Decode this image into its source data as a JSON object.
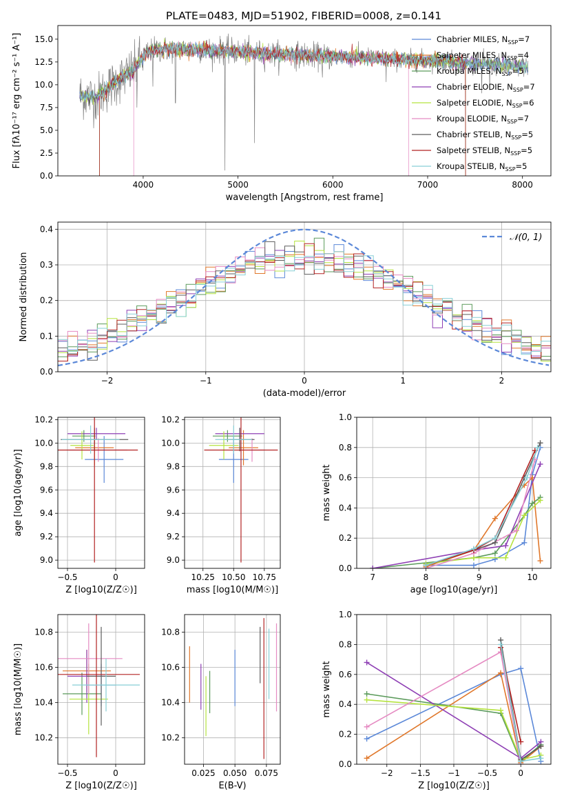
{
  "figure_title": "PLATE=0483, MJD=51902, FIBERID=0008, z=0.141",
  "model_colors": [
    "#5b88d8",
    "#e0772a",
    "#5a9a5a",
    "#8e3fb4",
    "#b5e33e",
    "#e58ac2",
    "#5c5c5c",
    "#b22222",
    "#87cfd6"
  ],
  "chart_data": [
    {
      "id": "spectrum",
      "type": "line",
      "title": "PLATE=0483, MJD=51902, FIBERID=0008, z=0.141",
      "xlabel": "wavelength [Angstrom, rest frame]",
      "ylabel": "Flux [fλ10⁻¹⁷ erg cm⁻² s⁻¹ A⁻¹]",
      "xlim": [
        3100,
        8300
      ],
      "ylim": [
        0,
        16.5
      ],
      "xticks": [
        4000,
        5000,
        6000,
        7000,
        8000
      ],
      "yticks": [
        0.0,
        2.5,
        5.0,
        7.5,
        10.0,
        12.5,
        15.0
      ],
      "grid": false,
      "legend_position": "right",
      "legend": [
        "Chabrier MILES, N_SSP=7",
        "Salpeter MILES, N_SSP=4",
        "Kroupa MILES, N_SSP=5",
        "Chabrier ELODIE, N_SSP=7",
        "Salpeter ELODIE, N_SSP=6",
        "Kroupa ELODIE, N_SSP=7",
        "Chabrier STELIB, N_SSP=5",
        "Salpeter STELIB, N_SSP=5",
        "Kroupa STELIB, N_SSP=5"
      ],
      "continuum": {
        "x": [
          3330,
          3500,
          3700,
          3900,
          4000,
          4100,
          4300,
          4500,
          4800,
          5000,
          5300,
          5600,
          5900,
          6200,
          6500,
          6800,
          7100,
          7400,
          7700,
          8060
        ],
        "y": [
          8.9,
          8.6,
          10.2,
          11.6,
          13.2,
          13.8,
          13.9,
          13.9,
          13.8,
          13.6,
          13.4,
          13.3,
          13.1,
          13.0,
          12.9,
          12.7,
          12.7,
          12.4,
          12.2,
          12.0
        ]
      },
      "absorption_lines": [
        {
          "x": 3934,
          "y": 7.5
        },
        {
          "x": 4102,
          "y": 9.8
        },
        {
          "x": 4340,
          "y": 8.0
        },
        {
          "x": 4861,
          "y": 0.6
        },
        {
          "x": 5175,
          "y": 3.6
        },
        {
          "x": 5890,
          "y": 10.8
        },
        {
          "x": 6563,
          "y": 10.3
        }
      ]
    },
    {
      "id": "residuals",
      "type": "histogram",
      "xlabel": "(data-model)/error",
      "ylabel": "Normed distribution",
      "xlim": [
        -2.5,
        2.5
      ],
      "ylim": [
        0,
        0.42
      ],
      "xticks": [
        -2,
        -1,
        0,
        1,
        2
      ],
      "yticks": [
        0.0,
        0.1,
        0.2,
        0.3,
        0.4
      ],
      "grid": true,
      "legend_position": "top-right",
      "legend": [
        "N(0,1)"
      ],
      "bin_width": 0.1
    },
    {
      "id": "age_vs_Z",
      "type": "errorbar",
      "xlabel": "Z [log10(Z/Z☉)]",
      "ylabel": "age  [log10(age/yr)]",
      "xlim": [
        -0.6,
        0.3
      ],
      "ylim": [
        8.93,
        10.22
      ],
      "xticks": [
        -0.5,
        0.0
      ],
      "yticks": [
        9.0,
        9.2,
        9.4,
        9.6,
        9.8,
        10.0,
        10.2
      ],
      "grid": true,
      "points": [
        {
          "x": -0.12,
          "y": 9.86,
          "xerr": 0.2,
          "yerr": 0.2
        },
        {
          "x": -0.22,
          "y": 9.96,
          "xerr": 0.2,
          "yerr": 0.15
        },
        {
          "x": -0.33,
          "y": 10.06,
          "xerr": 0.12,
          "yerr": 0.05
        },
        {
          "x": -0.2,
          "y": 10.08,
          "xerr": 0.3,
          "yerr": 0.05
        },
        {
          "x": -0.35,
          "y": 9.98,
          "xerr": 0.12,
          "yerr": 0.12
        },
        {
          "x": -0.18,
          "y": 9.94,
          "xerr": 0.3,
          "yerr": 0.1
        },
        {
          "x": -0.22,
          "y": 10.03,
          "xerr": 0.35,
          "yerr": 0.1
        },
        {
          "x": -0.22,
          "y": 9.94,
          "xerr": 0.45,
          "yerr": 0.96
        },
        {
          "x": -0.26,
          "y": 10.03,
          "xerr": 0.3,
          "yerr": 0.12
        }
      ]
    },
    {
      "id": "age_vs_mass",
      "type": "errorbar",
      "xlabel": "mass [log10(M/M☉)]",
      "xlim": [
        10.1,
        10.88
      ],
      "ylim": [
        8.93,
        10.22
      ],
      "xticks": [
        10.25,
        10.5,
        10.75
      ],
      "xtick_labels": [
        "10.25",
        "10.50",
        "10.75"
      ],
      "yticks": [
        9.0,
        9.2,
        9.4,
        9.6,
        9.8,
        10.0,
        10.2
      ],
      "grid": true,
      "points": [
        {
          "x": 10.5,
          "y": 9.86,
          "xerr": 0.12,
          "yerr": 0.2
        },
        {
          "x": 10.58,
          "y": 9.96,
          "xerr": 0.12,
          "yerr": 0.15
        },
        {
          "x": 10.45,
          "y": 10.06,
          "xerr": 0.12,
          "yerr": 0.05
        },
        {
          "x": 10.55,
          "y": 10.08,
          "xerr": 0.2,
          "yerr": 0.05
        },
        {
          "x": 10.42,
          "y": 9.98,
          "xerr": 0.12,
          "yerr": 0.12
        },
        {
          "x": 10.65,
          "y": 9.94,
          "xerr": 0.1,
          "yerr": 0.1
        },
        {
          "x": 10.55,
          "y": 10.03,
          "xerr": 0.12,
          "yerr": 0.1
        },
        {
          "x": 10.56,
          "y": 9.94,
          "xerr": 0.3,
          "yerr": 0.96
        },
        {
          "x": 10.5,
          "y": 10.03,
          "xerr": 0.15,
          "yerr": 0.12
        }
      ]
    },
    {
      "id": "weight_vs_age",
      "type": "line",
      "xlabel": "age  [log10(age/yr)]",
      "ylabel": "mass weight",
      "xlim": [
        6.7,
        10.35
      ],
      "ylim": [
        0,
        1
      ],
      "xticks": [
        7,
        8,
        9,
        10
      ],
      "yticks": [
        0.0,
        0.2,
        0.4,
        0.6,
        0.8,
        1.0
      ],
      "grid": true,
      "series": [
        {
          "x": [
            8.0,
            8.9,
            9.3,
            9.85,
            10.0,
            10.15
          ],
          "y": [
            0.02,
            0.02,
            0.06,
            0.17,
            0.62,
            0.8
          ]
        },
        {
          "x": [
            8.0,
            8.9,
            9.3,
            9.85,
            10.0,
            10.15
          ],
          "y": [
            0.01,
            0.12,
            0.33,
            0.55,
            0.6,
            0.05
          ]
        },
        {
          "x": [
            7.0,
            8.9,
            9.3,
            9.85,
            10.0,
            10.15
          ],
          "y": [
            0.0,
            0.07,
            0.1,
            0.35,
            0.43,
            0.47
          ]
        },
        {
          "x": [
            7.0,
            8.9,
            9.5,
            10.15
          ],
          "y": [
            0.0,
            0.12,
            0.15,
            0.69
          ]
        },
        {
          "x": [
            8.0,
            8.9,
            9.5,
            9.85,
            10.15
          ],
          "y": [
            0.03,
            0.07,
            0.07,
            0.35,
            0.45
          ]
        },
        {
          "x": [
            8.0,
            8.9,
            9.7,
            10.05
          ],
          "y": [
            0.0,
            0.1,
            0.25,
            0.72
          ]
        },
        {
          "x": [
            8.0,
            8.9,
            9.3,
            9.85,
            10.15
          ],
          "y": [
            0.02,
            0.12,
            0.17,
            0.6,
            0.83
          ]
        },
        {
          "x": [
            8.0,
            8.9,
            9.3,
            10.05
          ],
          "y": [
            0.02,
            0.12,
            0.2,
            0.78
          ]
        },
        {
          "x": [
            8.0,
            8.9,
            9.3,
            9.9,
            10.1
          ],
          "y": [
            0.02,
            0.13,
            0.2,
            0.6,
            0.8
          ]
        }
      ]
    },
    {
      "id": "mass_vs_Z",
      "type": "errorbar",
      "xlabel": "Z [log10(Z/Z☉)]",
      "ylabel": "mass [log10(M/M☉)]",
      "xlim": [
        -0.6,
        0.3
      ],
      "ylim": [
        10.05,
        10.9
      ],
      "xticks": [
        -0.5,
        0.0
      ],
      "yticks": [
        10.2,
        10.4,
        10.6,
        10.8
      ],
      "grid": true,
      "points": [
        {
          "x": -0.15,
          "y": 10.5,
          "xerr": 0.15,
          "yerr": 0.12
        },
        {
          "x": -0.3,
          "y": 10.58,
          "xerr": 0.25,
          "yerr": 0.12
        },
        {
          "x": -0.35,
          "y": 10.45,
          "xerr": 0.2,
          "yerr": 0.12
        },
        {
          "x": -0.3,
          "y": 10.55,
          "xerr": 0.2,
          "yerr": 0.15
        },
        {
          "x": -0.28,
          "y": 10.42,
          "xerr": 0.2,
          "yerr": 0.2
        },
        {
          "x": -0.28,
          "y": 10.65,
          "xerr": 0.35,
          "yerr": 0.2
        },
        {
          "x": -0.15,
          "y": 10.55,
          "xerr": 0.15,
          "yerr": 0.28
        },
        {
          "x": -0.2,
          "y": 10.56,
          "xerr": 0.45,
          "yerr": 0.47
        },
        {
          "x": -0.1,
          "y": 10.5,
          "xerr": 0.35,
          "yerr": 0.15
        }
      ]
    },
    {
      "id": "mass_vs_EBV",
      "type": "errorbar",
      "xlabel": "E(B-V)",
      "xlim": [
        0.01,
        0.086
      ],
      "ylim": [
        10.05,
        10.9
      ],
      "xticks": [
        0.025,
        0.05,
        0.075
      ],
      "xtick_labels": [
        "0.025",
        "0.050",
        "0.075"
      ],
      "yticks": [
        10.2,
        10.4,
        10.6,
        10.8
      ],
      "grid": true,
      "points": [
        {
          "x": 0.05,
          "y": 10.54,
          "yerr": 0.16
        },
        {
          "x": 0.014,
          "y": 10.56,
          "yerr": 0.16
        },
        {
          "x": 0.03,
          "y": 10.46,
          "yerr": 0.12
        },
        {
          "x": 0.023,
          "y": 10.49,
          "yerr": 0.13
        },
        {
          "x": 0.027,
          "y": 10.38,
          "yerr": 0.17
        },
        {
          "x": 0.083,
          "y": 10.6,
          "yerr": 0.25
        },
        {
          "x": 0.07,
          "y": 10.67,
          "yerr": 0.16
        },
        {
          "x": 0.073,
          "y": 10.48,
          "yerr": 0.4
        },
        {
          "x": 0.077,
          "y": 10.62,
          "yerr": 0.2
        }
      ]
    },
    {
      "id": "weight_vs_Z",
      "type": "line",
      "xlabel": "Z [log10(Z/Z☉)]",
      "ylabel": "mass weight",
      "xlim": [
        -2.45,
        0.45
      ],
      "ylim": [
        0,
        1
      ],
      "xticks": [
        -2.0,
        -1.5,
        -1.0,
        -0.5,
        0.0
      ],
      "yticks": [
        0.0,
        0.2,
        0.4,
        0.6,
        0.8,
        1.0
      ],
      "grid": true,
      "series": [
        {
          "x": [
            -2.3,
            -0.3,
            0.0,
            0.3
          ],
          "y": [
            0.17,
            0.6,
            0.64,
            0.02
          ]
        },
        {
          "x": [
            -2.3,
            -0.3,
            0.0,
            0.3
          ],
          "y": [
            0.04,
            0.61,
            0.01,
            0.12
          ]
        },
        {
          "x": [
            -2.3,
            -0.3,
            0.0,
            0.3
          ],
          "y": [
            0.47,
            0.34,
            0.02,
            0.13
          ]
        },
        {
          "x": [
            -2.3,
            0.0,
            0.3
          ],
          "y": [
            0.68,
            0.04,
            0.15
          ]
        },
        {
          "x": [
            -2.3,
            -0.3,
            0.0,
            0.3
          ],
          "y": [
            0.43,
            0.36,
            0.03,
            0.06
          ]
        },
        {
          "x": [
            -2.3,
            -0.3,
            0.0
          ],
          "y": [
            0.25,
            0.75,
            0.0
          ]
        },
        {
          "x": [
            -0.3,
            0.0,
            0.3
          ],
          "y": [
            0.83,
            0.03,
            0.12
          ]
        },
        {
          "x": [
            -0.3,
            0.0
          ],
          "y": [
            0.78,
            0.15
          ]
        },
        {
          "x": [
            -0.3,
            0.0,
            0.3
          ],
          "y": [
            0.8,
            0.02,
            0.04
          ]
        }
      ]
    }
  ]
}
